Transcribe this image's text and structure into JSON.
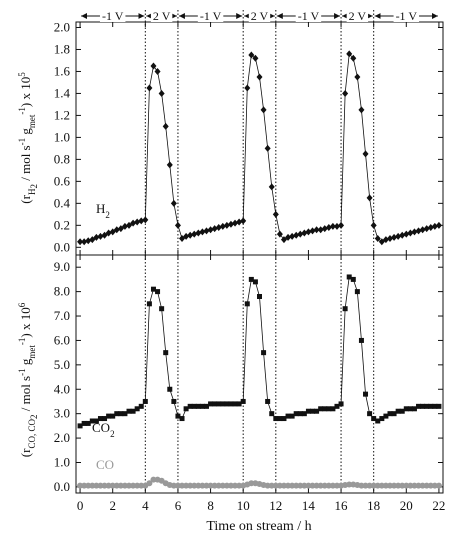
{
  "chart_data": [
    {
      "type": "line",
      "phases": [
        {
          "label": "-1 V",
          "start": 0,
          "end": 4
        },
        {
          "label": "2 V",
          "start": 4,
          "end": 6
        },
        {
          "label": "-1 V",
          "start": 6,
          "end": 10
        },
        {
          "label": "2 V",
          "start": 10,
          "end": 12
        },
        {
          "label": "-1 V",
          "start": 12,
          "end": 16
        },
        {
          "label": "2 V",
          "start": 16,
          "end": 18
        },
        {
          "label": "-1 V",
          "start": 18,
          "end": 22
        }
      ],
      "y_label": [
        "(r",
        "H",
        "2",
        " / mol s",
        "-1",
        " g",
        "met",
        "-1",
        ") x 10",
        "5"
      ],
      "xlim": [
        -0.25,
        22.25
      ],
      "xticks": [
        0,
        2,
        4,
        6,
        8,
        10,
        12,
        14,
        16,
        18,
        20,
        22
      ],
      "ylim": [
        -0.07,
        2.05
      ],
      "yticks": [
        {
          "value": 0,
          "label": "0.0"
        },
        {
          "value": 0.2,
          "label": "0.2"
        },
        {
          "value": 0.4,
          "label": "0.4"
        },
        {
          "value": 0.6,
          "label": "0.6"
        },
        {
          "value": 0.8,
          "label": "0.8"
        },
        {
          "value": 1,
          "label": "1.0"
        },
        {
          "value": 1.2,
          "label": "1.2"
        },
        {
          "value": 1.4,
          "label": "1.4"
        },
        {
          "value": 1.6,
          "label": "1.6"
        },
        {
          "value": 1.8,
          "label": "1.8"
        },
        {
          "value": 2,
          "label": "2.0"
        }
      ],
      "x": [
        0,
        0.25,
        0.5,
        0.75,
        1,
        1.25,
        1.5,
        1.75,
        2,
        2.25,
        2.5,
        2.75,
        3,
        3.25,
        3.5,
        3.75,
        4,
        4.25,
        4.5,
        4.75,
        5,
        5.25,
        5.5,
        5.75,
        6,
        6.25,
        6.5,
        6.75,
        7,
        7.25,
        7.5,
        7.75,
        8,
        8.25,
        8.5,
        8.75,
        9,
        9.25,
        9.5,
        9.75,
        10,
        10.25,
        10.5,
        10.75,
        11,
        11.25,
        11.5,
        11.75,
        12,
        12.25,
        12.5,
        12.75,
        13,
        13.25,
        13.5,
        13.75,
        14,
        14.25,
        14.5,
        14.75,
        15,
        15.25,
        15.5,
        15.75,
        16,
        16.25,
        16.5,
        16.75,
        17,
        17.25,
        17.5,
        17.75,
        18,
        18.25,
        18.5,
        18.75,
        19,
        19.25,
        19.5,
        19.75,
        20,
        20.25,
        20.5,
        20.75,
        21,
        21.25,
        21.5,
        21.75,
        22
      ],
      "series": [
        {
          "label": [
            "H",
            "2"
          ],
          "color": "#111111",
          "marker": "diamond",
          "values": [
            0.05,
            0.05,
            0.06,
            0.07,
            0.09,
            0.1,
            0.11,
            0.13,
            0.14,
            0.16,
            0.17,
            0.19,
            0.2,
            0.22,
            0.23,
            0.24,
            0.25,
            1.45,
            1.65,
            1.6,
            1.4,
            1.1,
            0.75,
            0.4,
            0.2,
            0.08,
            0.1,
            0.11,
            0.12,
            0.13,
            0.14,
            0.15,
            0.16,
            0.17,
            0.18,
            0.19,
            0.2,
            0.21,
            0.22,
            0.23,
            0.24,
            1.45,
            1.75,
            1.72,
            1.55,
            1.25,
            0.9,
            0.55,
            0.3,
            0.12,
            0.07,
            0.09,
            0.1,
            0.11,
            0.12,
            0.13,
            0.14,
            0.15,
            0.16,
            0.16,
            0.17,
            0.18,
            0.19,
            0.19,
            0.2,
            1.4,
            1.76,
            1.72,
            1.55,
            1.25,
            0.85,
            0.45,
            0.2,
            0.08,
            0.05,
            0.07,
            0.08,
            0.09,
            0.1,
            0.11,
            0.12,
            0.13,
            0.14,
            0.15,
            0.16,
            0.17,
            0.18,
            0.19,
            0.2
          ]
        }
      ]
    },
    {
      "type": "line",
      "y_label": [
        "(r",
        "CO, CO",
        "2",
        " / mol s",
        "-1",
        " g",
        "met",
        "-1",
        ") x 10",
        "6"
      ],
      "x_label": "Time on stream / h",
      "xlim": [
        -0.25,
        22.25
      ],
      "xticks": [
        0,
        2,
        4,
        6,
        8,
        10,
        12,
        14,
        16,
        18,
        20,
        22
      ],
      "ylim": [
        -0.25,
        9.5
      ],
      "yticks": [
        {
          "value": 0,
          "label": "0.0"
        },
        {
          "value": 1,
          "label": "1.0"
        },
        {
          "value": 2,
          "label": "2.0"
        },
        {
          "value": 3,
          "label": "3.0"
        },
        {
          "value": 4,
          "label": "4.0"
        },
        {
          "value": 5,
          "label": "5.0"
        },
        {
          "value": 6,
          "label": "6.0"
        },
        {
          "value": 7,
          "label": "7.0"
        },
        {
          "value": 8,
          "label": "8.0"
        },
        {
          "value": 9,
          "label": "9.0"
        }
      ],
      "x": [
        0,
        0.25,
        0.5,
        0.75,
        1,
        1.25,
        1.5,
        1.75,
        2,
        2.25,
        2.5,
        2.75,
        3,
        3.25,
        3.5,
        3.75,
        4,
        4.25,
        4.5,
        4.75,
        5,
        5.25,
        5.5,
        5.75,
        6,
        6.25,
        6.5,
        6.75,
        7,
        7.25,
        7.5,
        7.75,
        8,
        8.25,
        8.5,
        8.75,
        9,
        9.25,
        9.5,
        9.75,
        10,
        10.25,
        10.5,
        10.75,
        11,
        11.25,
        11.5,
        11.75,
        12,
        12.25,
        12.5,
        12.75,
        13,
        13.25,
        13.5,
        13.75,
        14,
        14.25,
        14.5,
        14.75,
        15,
        15.25,
        15.5,
        15.75,
        16,
        16.25,
        16.5,
        16.75,
        17,
        17.25,
        17.5,
        17.75,
        18,
        18.25,
        18.5,
        18.75,
        19,
        19.25,
        19.5,
        19.75,
        20,
        20.25,
        20.5,
        20.75,
        21,
        21.25,
        21.5,
        21.75,
        22
      ],
      "series": [
        {
          "label": [
            "CO",
            "2"
          ],
          "color": "#111111",
          "marker": "square",
          "values": [
            2.5,
            2.6,
            2.6,
            2.7,
            2.7,
            2.8,
            2.8,
            2.9,
            2.9,
            3.0,
            3.0,
            3.0,
            3.1,
            3.1,
            3.2,
            3.3,
            3.5,
            7.5,
            8.1,
            8.0,
            7.3,
            5.5,
            4.0,
            3.5,
            2.9,
            2.8,
            3.2,
            3.3,
            3.3,
            3.3,
            3.3,
            3.3,
            3.4,
            3.4,
            3.4,
            3.4,
            3.4,
            3.4,
            3.4,
            3.4,
            3.5,
            7.5,
            8.5,
            8.4,
            7.8,
            5.5,
            3.5,
            3.0,
            2.8,
            2.8,
            2.8,
            2.9,
            2.9,
            3.0,
            3.0,
            3.0,
            3.1,
            3.1,
            3.1,
            3.2,
            3.2,
            3.2,
            3.2,
            3.3,
            3.4,
            7.3,
            8.6,
            8.5,
            8.0,
            6.0,
            3.8,
            3.0,
            2.8,
            2.7,
            2.8,
            2.9,
            3.0,
            3.0,
            3.1,
            3.1,
            3.2,
            3.2,
            3.2,
            3.3,
            3.3,
            3.3,
            3.3,
            3.3,
            3.3
          ]
        },
        {
          "label": [
            "CO"
          ],
          "color": "#999999",
          "marker": "circle",
          "values": [
            0.05,
            0.05,
            0.05,
            0.05,
            0.05,
            0.05,
            0.05,
            0.05,
            0.05,
            0.05,
            0.05,
            0.05,
            0.05,
            0.05,
            0.05,
            0.05,
            0.05,
            0.15,
            0.3,
            0.3,
            0.25,
            0.15,
            0.08,
            0.05,
            0.05,
            0.05,
            0.05,
            0.05,
            0.05,
            0.05,
            0.05,
            0.05,
            0.05,
            0.05,
            0.05,
            0.05,
            0.05,
            0.05,
            0.05,
            0.05,
            0.05,
            0.1,
            0.15,
            0.15,
            0.12,
            0.08,
            0.05,
            0.05,
            0.05,
            0.05,
            0.05,
            0.05,
            0.05,
            0.05,
            0.05,
            0.05,
            0.05,
            0.05,
            0.05,
            0.05,
            0.05,
            0.05,
            0.05,
            0.05,
            0.05,
            0.08,
            0.1,
            0.1,
            0.08,
            0.05,
            0.05,
            0.05,
            0.05,
            0.05,
            0.05,
            0.05,
            0.05,
            0.05,
            0.05,
            0.05,
            0.05,
            0.05,
            0.05,
            0.05,
            0.05,
            0.05,
            0.05,
            0.05,
            0.05
          ]
        }
      ]
    }
  ]
}
